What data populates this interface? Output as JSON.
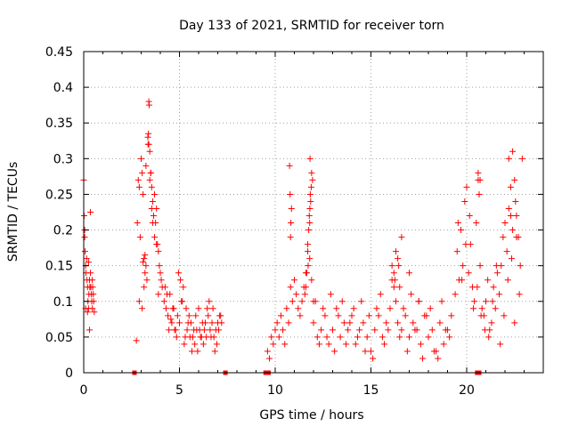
{
  "chart_data": {
    "type": "scatter",
    "title": "Day 133 of 2021, SRMTID for receiver torn",
    "xlabel": "GPS time / hours",
    "ylabel": "SRMTID / TECUs",
    "xlim": [
      0,
      24
    ],
    "ylim": [
      0,
      0.45
    ],
    "xticks": [
      0,
      5,
      10,
      15,
      20
    ],
    "yticks": [
      0,
      0.05,
      0.1,
      0.15,
      0.2,
      0.25,
      0.3,
      0.35,
      0.4,
      0.45
    ],
    "xtick_labels": [
      "0",
      "5",
      "10",
      "15",
      "20"
    ],
    "ytick_labels": [
      "0",
      "0.05",
      "0.1",
      "0.15",
      "0.2",
      "0.25",
      "0.3",
      "0.35",
      "0.4",
      "0.45"
    ],
    "grid": true,
    "marker": "+",
    "color": "#ff0000",
    "series": [
      {
        "name": "SRMTID",
        "x": [
          0.0,
          0.02,
          0.05,
          0.07,
          0.1,
          0.12,
          0.15,
          0.17,
          0.2,
          0.22,
          0.25,
          0.27,
          0.3,
          0.32,
          0.35,
          0.37,
          0.4,
          0.42,
          0.45,
          0.47,
          0.5,
          0.52,
          0.55,
          0.3,
          0.2,
          0.1,
          0.35,
          0.45,
          0.05,
          0.25,
          2.75,
          2.8,
          2.85,
          2.9,
          2.95,
          3.0,
          3.05,
          3.1,
          3.15,
          3.2,
          3.25,
          3.3,
          3.35,
          3.4,
          3.45,
          3.5,
          3.55,
          3.6,
          3.65,
          3.7,
          3.75,
          3.8,
          3.85,
          3.9,
          3.95,
          4.0,
          4.05,
          4.1,
          3.4,
          3.42,
          3.38,
          3.36,
          3.5,
          3.1,
          3.2,
          3.6,
          3.7,
          3.15,
          3.8,
          3.05,
          3.45,
          3.9,
          2.9,
          3.25,
          3.55,
          4.2,
          4.3,
          4.4,
          4.5,
          4.6,
          4.7,
          4.8,
          4.9,
          5.0,
          5.1,
          5.2,
          5.3,
          5.4,
          5.5,
          5.6,
          5.7,
          5.8,
          5.9,
          6.0,
          6.1,
          6.2,
          6.3,
          6.4,
          6.5,
          6.6,
          6.7,
          6.8,
          6.9,
          7.0,
          7.1,
          7.2,
          4.25,
          4.45,
          4.65,
          4.85,
          5.05,
          5.25,
          5.45,
          5.65,
          5.85,
          6.05,
          6.25,
          6.45,
          6.65,
          6.85,
          7.05,
          4.35,
          4.75,
          5.15,
          5.55,
          5.95,
          6.35,
          6.75,
          7.15,
          4.55,
          4.95,
          5.35,
          5.75,
          6.15,
          6.55,
          6.95,
          9.6,
          9.7,
          9.8,
          9.9,
          10.0,
          10.1,
          10.2,
          10.3,
          10.4,
          10.5,
          10.6,
          10.7,
          10.8,
          10.9,
          11.0,
          11.1,
          11.2,
          11.3,
          11.4,
          11.5,
          11.6,
          11.7,
          11.8,
          11.9,
          12.0,
          10.75,
          10.78,
          10.82,
          10.85,
          10.8,
          11.7,
          11.75,
          11.78,
          11.8,
          11.85,
          11.88,
          11.82,
          11.72,
          11.65,
          11.9,
          11.6,
          11.55,
          11.95,
          11.83,
          11.81,
          12.0,
          12.2,
          12.4,
          12.6,
          12.8,
          13.0,
          13.2,
          13.4,
          13.6,
          13.8,
          14.0,
          14.2,
          14.4,
          14.6,
          14.8,
          15.0,
          15.2,
          15.4,
          15.6,
          15.8,
          16.0,
          16.2,
          16.4,
          16.6,
          16.8,
          17.0,
          17.2,
          17.4,
          17.6,
          17.8,
          18.0,
          18.2,
          18.4,
          18.6,
          18.8,
          19.0,
          19.2,
          12.1,
          12.3,
          12.5,
          12.7,
          12.9,
          13.1,
          13.3,
          13.5,
          13.7,
          13.9,
          14.1,
          14.3,
          14.5,
          14.7,
          14.9,
          15.1,
          15.3,
          15.5,
          15.7,
          15.9,
          16.1,
          16.3,
          16.5,
          16.7,
          16.9,
          17.1,
          17.3,
          17.5,
          17.7,
          17.9,
          18.1,
          18.3,
          18.5,
          18.7,
          18.9,
          19.1,
          16.1,
          16.2,
          16.3,
          16.4,
          16.5,
          16.6,
          16.25,
          16.45,
          17.0,
          17.5,
          19.4,
          19.5,
          19.6,
          19.7,
          19.8,
          19.9,
          20.0,
          20.1,
          20.2,
          20.3,
          20.4,
          20.5,
          20.6,
          20.7,
          20.8,
          20.9,
          21.0,
          21.1,
          21.2,
          21.3,
          21.4,
          21.5,
          21.6,
          21.7,
          21.8,
          21.9,
          22.0,
          22.1,
          22.2,
          22.3,
          22.4,
          22.5,
          22.6,
          22.7,
          22.8,
          22.9,
          19.55,
          19.75,
          19.95,
          20.15,
          20.35,
          20.55,
          20.75,
          20.95,
          21.15,
          21.35,
          21.55,
          21.75,
          21.95,
          22.15,
          22.35,
          22.55,
          22.75,
          20.6,
          20.65,
          20.7,
          22.2,
          22.4,
          22.5,
          22.6,
          22.3
        ],
        "y": [
          0.27,
          0.22,
          0.19,
          0.17,
          0.15,
          0.14,
          0.16,
          0.13,
          0.12,
          0.1,
          0.09,
          0.11,
          0.13,
          0.12,
          0.14,
          0.12,
          0.11,
          0.1,
          0.09,
          0.12,
          0.11,
          0.1,
          0.085,
          0.06,
          0.085,
          0.09,
          0.225,
          0.13,
          0.2,
          0.155,
          0.045,
          0.21,
          0.27,
          0.26,
          0.19,
          0.3,
          0.28,
          0.25,
          0.16,
          0.14,
          0.15,
          0.13,
          0.33,
          0.32,
          0.31,
          0.28,
          0.26,
          0.24,
          0.22,
          0.19,
          0.21,
          0.23,
          0.18,
          0.17,
          0.15,
          0.14,
          0.13,
          0.12,
          0.38,
          0.375,
          0.335,
          0.32,
          0.28,
          0.155,
          0.165,
          0.21,
          0.25,
          0.12,
          0.18,
          0.09,
          0.27,
          0.11,
          0.1,
          0.29,
          0.23,
          0.1,
          0.09,
          0.08,
          0.11,
          0.07,
          0.09,
          0.06,
          0.08,
          0.07,
          0.1,
          0.12,
          0.05,
          0.06,
          0.08,
          0.07,
          0.05,
          0.04,
          0.06,
          0.09,
          0.05,
          0.07,
          0.06,
          0.05,
          0.08,
          0.06,
          0.07,
          0.05,
          0.06,
          0.07,
          0.08,
          0.07,
          0.12,
          0.06,
          0.09,
          0.05,
          0.13,
          0.04,
          0.07,
          0.03,
          0.08,
          0.06,
          0.04,
          0.09,
          0.05,
          0.03,
          0.06,
          0.11,
          0.06,
          0.1,
          0.05,
          0.03,
          0.07,
          0.09,
          0.08,
          0.075,
          0.14,
          0.09,
          0.06,
          0.05,
          0.1,
          0.04,
          0.03,
          0.02,
          0.05,
          0.04,
          0.06,
          0.07,
          0.05,
          0.08,
          0.06,
          0.04,
          0.09,
          0.07,
          0.12,
          0.1,
          0.13,
          0.11,
          0.09,
          0.08,
          0.1,
          0.12,
          0.14,
          0.18,
          0.16,
          0.13,
          0.1,
          0.29,
          0.25,
          0.21,
          0.23,
          0.19,
          0.17,
          0.2,
          0.22,
          0.21,
          0.24,
          0.26,
          0.3,
          0.15,
          0.14,
          0.28,
          0.12,
          0.11,
          0.27,
          0.25,
          0.23,
          0.07,
          0.05,
          0.06,
          0.08,
          0.04,
          0.06,
          0.09,
          0.05,
          0.07,
          0.06,
          0.08,
          0.04,
          0.06,
          0.07,
          0.05,
          0.03,
          0.06,
          0.08,
          0.05,
          0.07,
          0.09,
          0.12,
          0.07,
          0.06,
          0.08,
          0.05,
          0.07,
          0.06,
          0.04,
          0.08,
          0.05,
          0.06,
          0.03,
          0.07,
          0.04,
          0.06,
          0.08,
          0.1,
          0.04,
          0.09,
          0.05,
          0.11,
          0.03,
          0.08,
          0.1,
          0.04,
          0.07,
          0.09,
          0.05,
          0.1,
          0.03,
          0.08,
          0.02,
          0.09,
          0.11,
          0.04,
          0.06,
          0.13,
          0.1,
          0.05,
          0.09,
          0.03,
          0.11,
          0.06,
          0.1,
          0.02,
          0.08,
          0.09,
          0.03,
          0.02,
          0.1,
          0.06,
          0.05,
          0.15,
          0.14,
          0.17,
          0.16,
          0.12,
          0.19,
          0.13,
          0.15,
          0.14,
          0.1,
          0.11,
          0.17,
          0.13,
          0.2,
          0.15,
          0.24,
          0.26,
          0.14,
          0.18,
          0.12,
          0.1,
          0.21,
          0.27,
          0.15,
          0.09,
          0.08,
          0.1,
          0.13,
          0.06,
          0.07,
          0.12,
          0.09,
          0.14,
          0.11,
          0.15,
          0.19,
          0.21,
          0.17,
          0.23,
          0.26,
          0.2,
          0.27,
          0.22,
          0.19,
          0.15,
          0.3,
          0.21,
          0.13,
          0.18,
          0.22,
          0.09,
          0.12,
          0.08,
          0.06,
          0.05,
          0.1,
          0.15,
          0.04,
          0.08,
          0.13,
          0.16,
          0.24,
          0.11,
          0.28,
          0.25,
          0.27,
          0.3,
          0.31,
          0.07,
          0.19,
          0.22
        ]
      }
    ],
    "gap_markers_x": [
      2.65,
      7.4,
      9.5,
      9.65,
      20.55,
      20.65
    ]
  }
}
